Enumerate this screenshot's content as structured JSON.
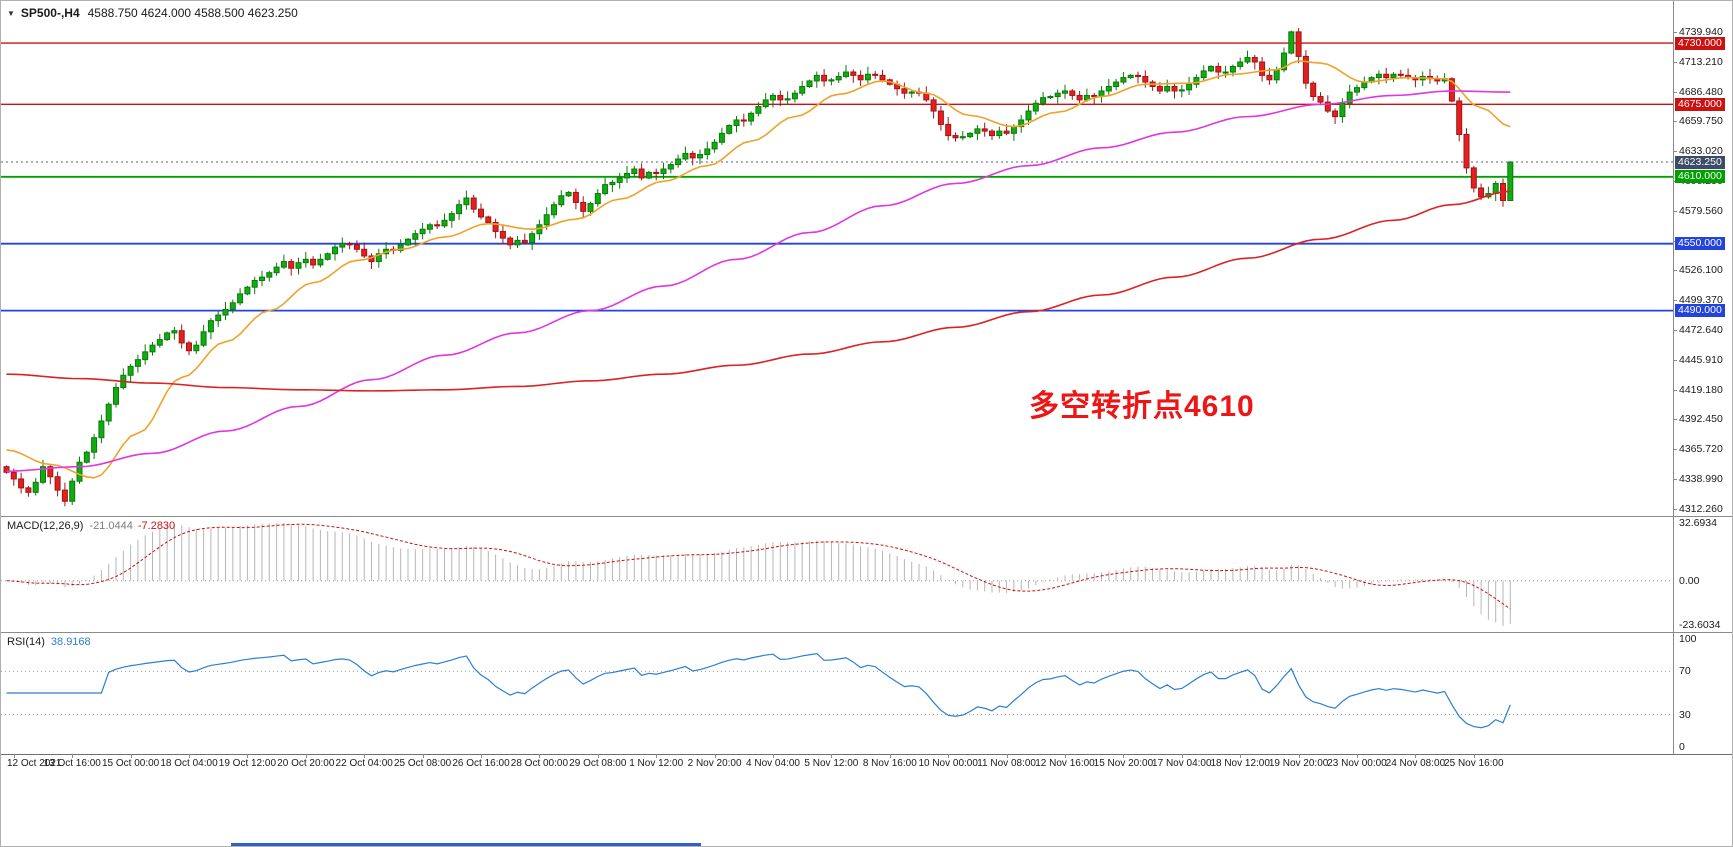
{
  "header": {
    "collapse_icon": "▼",
    "symbol_timeframe": "SP500-,H4",
    "ohlc": "4588.750 4624.000 4588.500 4623.250"
  },
  "colors": {
    "up": "#12ab12",
    "up_border": "#0a7a0a",
    "down": "#e32020",
    "down_border": "#a31414",
    "ma_fast": "#f0a228",
    "ma_mid": "#e036e0",
    "ma_slow": "#dd2222",
    "level_red": "#cc1111",
    "level_green": "#00a000",
    "level_blue": "#2244dd",
    "badge_current": "#3c4b66",
    "hist": "#b6b6b6",
    "signal": "#cc1111",
    "rsi_line": "#2a7fd4",
    "annotation": "#ee1515",
    "scrollbar": "#2f62c9"
  },
  "chart_data": {
    "type": "candlestick",
    "title": "SP500-,H4",
    "symbol": "SP500-",
    "timeframe": "H4",
    "ohlc_current": {
      "open": 4588.75,
      "high": 4624.0,
      "low": 4588.5,
      "close": 4623.25
    },
    "y_axis": {
      "ticks": [
        "4739.940",
        "4713.210",
        "4686.480",
        "4659.750",
        "4633.020",
        "4606.290",
        "4579.560",
        "4552.830",
        "4526.100",
        "4499.370",
        "4472.640",
        "4445.910",
        "4419.180",
        "4392.450",
        "4365.720",
        "4338.990",
        "4312.260"
      ]
    },
    "price_lines": [
      {
        "price": 4730,
        "label": "4730.000",
        "color": "red"
      },
      {
        "price": 4675,
        "label": "4675.000",
        "color": "red"
      },
      {
        "price": 4610,
        "label": "4610.000",
        "color": "green"
      },
      {
        "price": 4550,
        "label": "4550.000",
        "color": "blue"
      },
      {
        "price": 4490,
        "label": "4490.000",
        "color": "blue"
      }
    ],
    "current_price": {
      "value": 4623.25,
      "label": "4623.250"
    },
    "candles": {
      "closes": [
        4345,
        4339,
        4331,
        4327,
        4336,
        4350,
        4341,
        4329,
        4319,
        4337,
        4354,
        4363,
        4376,
        4391,
        4406,
        4421,
        4432,
        4440,
        4446,
        4453,
        4459,
        4464,
        4470,
        4472,
        4461,
        4454,
        4459,
        4471,
        4481,
        4486,
        4491,
        4497,
        4505,
        4511,
        4517,
        4520,
        4524,
        4529,
        4534,
        4528,
        4533,
        4536,
        4531,
        4536,
        4541,
        4547,
        4550,
        4549,
        4545,
        4539,
        4534,
        4541,
        4545,
        4544,
        4549,
        4554,
        4559,
        4563,
        4567,
        4566,
        4571,
        4577,
        4585,
        4591,
        4581,
        4574,
        4569,
        4561,
        4555,
        4549,
        4553,
        4551,
        4559,
        4567,
        4576,
        4585,
        4593,
        4596,
        4587,
        4579,
        4586,
        4595,
        4603,
        4605,
        4609,
        4613,
        4617,
        4609,
        4614,
        4613,
        4617,
        4621,
        4626,
        4631,
        4627,
        4630,
        4635,
        4641,
        4649,
        4656,
        4661,
        4660,
        4667,
        4673,
        4679,
        4683,
        4679,
        4680,
        4685,
        4691,
        4696,
        4701,
        4696,
        4697,
        4700,
        4704,
        4701,
        4697,
        4702,
        4701,
        4697,
        4693,
        4689,
        4685,
        4686,
        4685,
        4679,
        4669,
        4657,
        4647,
        4645,
        4646,
        4649,
        4653,
        4651,
        4647,
        4651,
        4649,
        4655,
        4661,
        4669,
        4676,
        4681,
        4682,
        4685,
        4687,
        4683,
        4679,
        4683,
        4682,
        4687,
        4691,
        4695,
        4699,
        4701,
        4700,
        4695,
        4691,
        4687,
        4691,
        4687,
        4688,
        4693,
        4699,
        4705,
        4709,
        4704,
        4704,
        4709,
        4713,
        4717,
        4713,
        4701,
        4697,
        4706,
        4721,
        4740,
        4718,
        4694,
        4682,
        4677,
        4669,
        4664,
        4676,
        4686,
        4690,
        4695,
        4699,
        4702,
        4699,
        4702,
        4701,
        4699,
        4697,
        4700,
        4698,
        4696,
        4698,
        4678,
        4648,
        4618,
        4600,
        4592,
        4595,
        4604,
        4588.75,
        4623.25
      ],
      "last_bar": {
        "o": 4588.75,
        "h": 4624.0,
        "l": 4588.5,
        "c": 4623.25
      }
    },
    "moving_averages": [
      {
        "name": "ma-fast",
        "color_key": "ma_fast",
        "points": [
          [
            0,
            4365
          ],
          [
            6,
            4352
          ],
          [
            12,
            4340
          ],
          [
            18,
            4380
          ],
          [
            24,
            4430
          ],
          [
            30,
            4462
          ],
          [
            36,
            4490
          ],
          [
            42,
            4515
          ],
          [
            48,
            4535
          ],
          [
            54,
            4545
          ],
          [
            60,
            4556
          ],
          [
            66,
            4568
          ],
          [
            72,
            4563
          ],
          [
            78,
            4572
          ],
          [
            84,
            4590
          ],
          [
            90,
            4606
          ],
          [
            96,
            4620
          ],
          [
            102,
            4642
          ],
          [
            108,
            4664
          ],
          [
            114,
            4684
          ],
          [
            120,
            4696
          ],
          [
            126,
            4685
          ],
          [
            132,
            4665
          ],
          [
            138,
            4655
          ],
          [
            144,
            4668
          ],
          [
            150,
            4682
          ],
          [
            156,
            4693
          ],
          [
            162,
            4694
          ],
          [
            168,
            4702
          ],
          [
            174,
            4706
          ],
          [
            177,
            4714
          ],
          [
            180,
            4712
          ],
          [
            186,
            4695
          ],
          [
            192,
            4699
          ],
          [
            197,
            4698
          ],
          [
            202,
            4672
          ],
          [
            206,
            4655
          ]
        ]
      },
      {
        "name": "ma-mid",
        "color_key": "ma_mid",
        "points": [
          [
            0,
            4346
          ],
          [
            10,
            4350
          ],
          [
            20,
            4362
          ],
          [
            30,
            4382
          ],
          [
            40,
            4404
          ],
          [
            50,
            4428
          ],
          [
            60,
            4450
          ],
          [
            70,
            4470
          ],
          [
            80,
            4490
          ],
          [
            90,
            4512
          ],
          [
            100,
            4536
          ],
          [
            110,
            4560
          ],
          [
            120,
            4584
          ],
          [
            130,
            4604
          ],
          [
            140,
            4620
          ],
          [
            150,
            4636
          ],
          [
            160,
            4650
          ],
          [
            170,
            4664
          ],
          [
            180,
            4675
          ],
          [
            190,
            4683
          ],
          [
            198,
            4687
          ],
          [
            206,
            4686
          ]
        ]
      },
      {
        "name": "ma-slow",
        "color_key": "ma_slow",
        "points": [
          [
            0,
            4433
          ],
          [
            10,
            4429
          ],
          [
            20,
            4425
          ],
          [
            30,
            4421
          ],
          [
            40,
            4419
          ],
          [
            50,
            4418
          ],
          [
            60,
            4419
          ],
          [
            70,
            4422
          ],
          [
            80,
            4427
          ],
          [
            90,
            4433
          ],
          [
            100,
            4441
          ],
          [
            110,
            4451
          ],
          [
            120,
            4462
          ],
          [
            130,
            4475
          ],
          [
            140,
            4489
          ],
          [
            150,
            4504
          ],
          [
            160,
            4520
          ],
          [
            170,
            4537
          ],
          [
            180,
            4554
          ],
          [
            190,
            4571
          ],
          [
            198,
            4585
          ],
          [
            206,
            4597
          ]
        ]
      }
    ],
    "annotation": {
      "text": "多空转折点4610"
    },
    "macd": {
      "label": "MACD(12,26,9)",
      "value_main": "-21.0444",
      "value_signal": "-7.2830",
      "fast": 12,
      "slow": 26,
      "signal": 9,
      "axis_labels": {
        "max": "32.6934",
        "zero": "0.00",
        "min": "-23.6034"
      }
    },
    "rsi": {
      "label": "RSI(14)",
      "value": "38.9168",
      "period": 14,
      "levels": [
        70,
        30
      ],
      "axis_labels": [
        "100",
        "70",
        "30",
        "0"
      ]
    },
    "time_labels": [
      "12 Oct 2021",
      "13 Oct 16:00",
      "15 Oct 00:00",
      "18 Oct 04:00",
      "19 Oct 12:00",
      "20 Oct 20:00",
      "22 Oct 04:00",
      "25 Oct 08:00",
      "26 Oct 16:00",
      "28 Oct 00:00",
      "29 Oct 08:00",
      "1 Nov 12:00",
      "2 Nov 20:00",
      "4 Nov 04:00",
      "5 Nov 12:00",
      "8 Nov 16:00",
      "10 Nov 00:00",
      "11 Nov 08:00",
      "12 Nov 16:00",
      "15 Nov 20:00",
      "17 Nov 04:00",
      "18 Nov 12:00",
      "19 Nov 20:00",
      "23 Nov 00:00",
      "24 Nov 08:00",
      "25 Nov 16:00"
    ]
  }
}
